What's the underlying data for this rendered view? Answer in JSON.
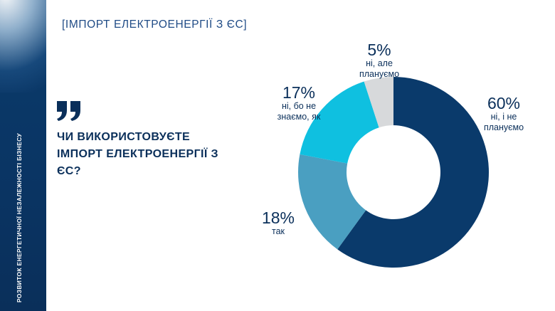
{
  "header": {
    "title": "[ІМПОРТ ЕЛЕКТРОЕНЕРГІЇ З ЄС]"
  },
  "sidebar": {
    "caption": "РОЗВИТОК ЕНЕРГЕТИЧНОЇ НЕЗАЛЕЖНОСТІ БІЗНЕСУ"
  },
  "question": "ЧИ ВИКОРИСТОВУЄТЕ ІМПОРТ ЕЛЕКТРОЕНЕРГІЇ З ЄС?",
  "quote_icon": "quote-icon",
  "colors": {
    "navy": "#0a3a6b",
    "steel": "#4a9fc1",
    "cyan": "#0fc0e0",
    "grey": "#d7d9db",
    "text": "#0a2f5a",
    "header": "#1f4b86"
  },
  "chart_data": {
    "type": "pie",
    "title": "",
    "slices": [
      {
        "label": "ні, і не плануємо",
        "value": 60,
        "pct": "60%",
        "color": "#0a3a6b"
      },
      {
        "label": "так",
        "value": 18,
        "pct": "18%",
        "color": "#4a9fc1"
      },
      {
        "label": "ні, бо не знаємо, як",
        "value": 17,
        "pct": "17%",
        "color": "#0fc0e0"
      },
      {
        "label": "ні, але плануємо",
        "value": 5,
        "pct": "5%",
        "color": "#d7d9db"
      }
    ],
    "legend": "none"
  }
}
